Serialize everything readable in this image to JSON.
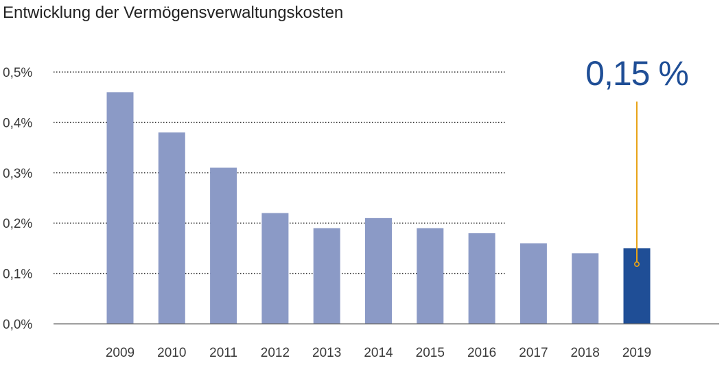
{
  "chart_data": {
    "type": "bar",
    "title": "Entwicklung der Vermögensverwaltungskosten",
    "xlabel": "",
    "ylabel": "",
    "categories": [
      "2009",
      "2010",
      "2011",
      "2012",
      "2013",
      "2014",
      "2015",
      "2016",
      "2017",
      "2018",
      "2019"
    ],
    "values": [
      0.46,
      0.38,
      0.31,
      0.22,
      0.19,
      0.21,
      0.19,
      0.18,
      0.16,
      0.14,
      0.15
    ],
    "ylim": [
      0,
      0.5
    ],
    "yticks": [
      0,
      0.1,
      0.2,
      0.3,
      0.4,
      0.5
    ],
    "ytick_labels": [
      "0,0%",
      "0,1%",
      "0,2%",
      "0,3%",
      "0,4%",
      "0,5%"
    ],
    "grid": "dotted-horizontal",
    "highlight": {
      "category": "2019",
      "label": "0,15 %"
    },
    "colors": {
      "bar": "#8b9ac6",
      "highlight_bar": "#1f4e96",
      "callout_text": "#1f4e96",
      "callout_line": "#e8a317",
      "axis": "#666666",
      "grid": "#333333",
      "text": "#222222"
    }
  }
}
